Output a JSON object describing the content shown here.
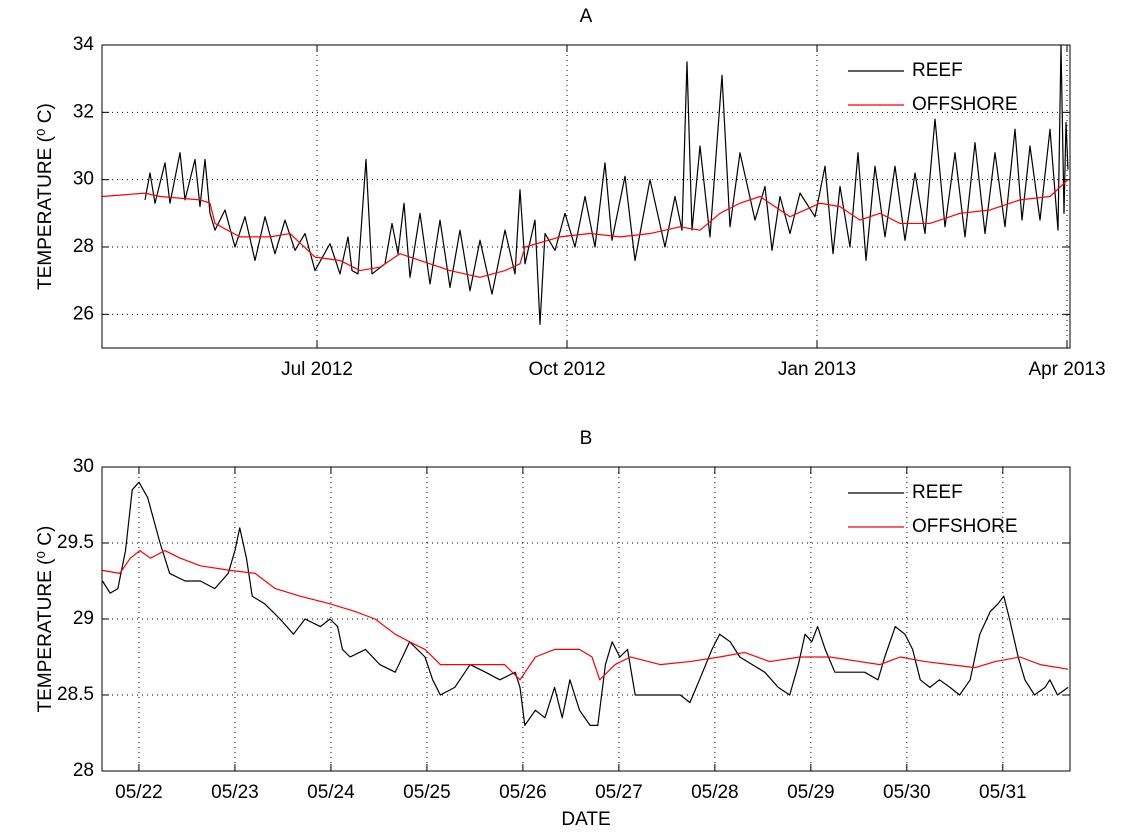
{
  "chart_data": [
    {
      "type": "line",
      "title": "A",
      "ylabel": "TEMPERATURE (⁰ C)",
      "grid": true,
      "legend": "upper right",
      "xlim": [
        2012.285,
        2013.253
      ],
      "ylim": [
        25,
        34
      ],
      "xticks": [
        {
          "value": 2012.5,
          "label": "Jul 2012"
        },
        {
          "value": 2012.75,
          "label": "Oct 2012"
        },
        {
          "value": 2013.0,
          "label": "Jan 2013"
        },
        {
          "value": 2013.25,
          "label": "Apr 2013"
        }
      ],
      "yticks": [
        26,
        28,
        30,
        32,
        34
      ],
      "series": [
        {
          "name": "REEF",
          "color": "#000000",
          "x": [
            2012.328,
            2012.333,
            2012.338,
            2012.348,
            2012.353,
            2012.363,
            2012.368,
            2012.378,
            2012.383,
            2012.388,
            2012.393,
            2012.398,
            2012.408,
            2012.418,
            2012.428,
            2012.438,
            2012.448,
            2012.458,
            2012.468,
            2012.478,
            2012.488,
            2012.498,
            2012.513,
            2012.523,
            2012.531,
            2012.535,
            2012.541,
            2012.549,
            2012.555,
            2012.568,
            2012.575,
            2012.581,
            2012.587,
            2012.593,
            2012.603,
            2012.613,
            2012.623,
            2012.633,
            2012.643,
            2012.653,
            2012.663,
            2012.675,
            2012.688,
            2012.698,
            2012.703,
            2012.708,
            2012.718,
            2012.723,
            2012.728,
            2012.738,
            2012.748,
            2012.758,
            2012.768,
            2012.778,
            2012.788,
            2012.795,
            2012.808,
            2012.818,
            2012.833,
            2012.848,
            2012.858,
            2012.865,
            2012.87,
            2012.875,
            2012.883,
            2012.893,
            2012.905,
            2012.913,
            2012.923,
            2012.938,
            2012.948,
            2012.955,
            2012.963,
            2012.973,
            2012.983,
            2012.998,
            2013.008,
            2013.016,
            2013.023,
            2013.033,
            2013.041,
            2013.049,
            2013.058,
            2013.068,
            2013.078,
            2013.088,
            2013.098,
            2013.108,
            2013.118,
            2013.128,
            2013.138,
            2013.148,
            2013.158,
            2013.168,
            2013.178,
            2013.188,
            2013.198,
            2013.205,
            2013.213,
            2013.223,
            2013.233,
            2013.241,
            2013.244,
            2013.247,
            2013.249,
            2013.251
          ],
          "values": [
            29.4,
            30.2,
            29.3,
            30.5,
            29.3,
            30.8,
            29.4,
            30.6,
            29.2,
            30.6,
            29.0,
            28.5,
            29.1,
            28.0,
            28.9,
            27.6,
            28.9,
            27.8,
            28.8,
            27.9,
            28.4,
            27.3,
            28.1,
            27.2,
            28.3,
            27.3,
            27.2,
            30.6,
            27.2,
            27.5,
            28.7,
            27.8,
            29.3,
            27.1,
            29.0,
            26.9,
            28.8,
            26.8,
            28.5,
            26.7,
            28.2,
            26.6,
            28.5,
            27.2,
            29.7,
            27.5,
            28.8,
            25.7,
            28.4,
            27.9,
            29.0,
            28.0,
            29.5,
            28.0,
            30.5,
            28.2,
            30.1,
            27.6,
            30.0,
            28.0,
            29.5,
            28.5,
            33.5,
            28.5,
            31.0,
            28.3,
            33.1,
            28.6,
            30.8,
            28.8,
            29.8,
            27.9,
            29.5,
            28.4,
            29.6,
            28.9,
            30.4,
            27.8,
            29.8,
            28.0,
            30.8,
            27.6,
            30.4,
            28.3,
            30.4,
            28.2,
            30.2,
            28.4,
            31.8,
            28.6,
            30.8,
            28.3,
            31.1,
            28.4,
            30.8,
            28.6,
            31.5,
            28.8,
            31.0,
            28.8,
            31.5,
            28.5,
            34.0,
            29.0,
            31.7,
            30.3
          ]
        },
        {
          "name": "OFFSHORE",
          "color": "#ff0000",
          "x": [
            2012.285,
            2012.328,
            2012.343,
            2012.383,
            2012.393,
            2012.398,
            2012.423,
            2012.453,
            2012.473,
            2012.498,
            2012.523,
            2012.543,
            2012.563,
            2012.583,
            2012.603,
            2012.633,
            2012.663,
            2012.688,
            2012.703,
            2012.708,
            2012.743,
            2012.773,
            2012.803,
            2012.833,
            2012.863,
            2012.883,
            2012.903,
            2012.923,
            2012.943,
            2012.973,
            2013.003,
            2013.023,
            2013.043,
            2013.063,
            2013.083,
            2013.113,
            2013.143,
            2013.173,
            2013.203,
            2013.233,
            2013.251
          ],
          "values": [
            29.5,
            29.6,
            29.5,
            29.4,
            29.3,
            28.7,
            28.3,
            28.3,
            28.4,
            27.7,
            27.6,
            27.3,
            27.4,
            27.8,
            27.6,
            27.3,
            27.1,
            27.3,
            27.5,
            28.0,
            28.3,
            28.4,
            28.3,
            28.4,
            28.6,
            28.5,
            29.0,
            29.3,
            29.5,
            28.9,
            29.3,
            29.2,
            28.8,
            29.0,
            28.7,
            28.7,
            29.0,
            29.1,
            29.4,
            29.5,
            30.0
          ]
        }
      ]
    },
    {
      "type": "line",
      "title": "B",
      "xlabel": "DATE",
      "ylabel": "TEMPERATURE (⁰ C)",
      "grid": true,
      "legend": "upper right",
      "xlim": [
        21.615,
        31.7
      ],
      "ylim": [
        28,
        30
      ],
      "xticks": [
        {
          "value": 22,
          "label": "05/22"
        },
        {
          "value": 23,
          "label": "05/23"
        },
        {
          "value": 24,
          "label": "05/24"
        },
        {
          "value": 25,
          "label": "05/25"
        },
        {
          "value": 26,
          "label": "05/26"
        },
        {
          "value": 27,
          "label": "05/27"
        },
        {
          "value": 28,
          "label": "05/28"
        },
        {
          "value": 29,
          "label": "05/29"
        },
        {
          "value": 30,
          "label": "05/30"
        },
        {
          "value": 31,
          "label": "05/31"
        }
      ],
      "yticks": [
        28,
        28.5,
        29,
        29.5,
        30
      ],
      "series": [
        {
          "name": "REEF",
          "color": "#000000",
          "x": [
            21.62,
            21.7,
            21.78,
            21.86,
            21.93,
            22.0,
            22.09,
            22.22,
            22.32,
            22.48,
            22.64,
            22.79,
            22.93,
            23.0,
            23.05,
            23.12,
            23.18,
            23.31,
            23.47,
            23.61,
            23.73,
            23.89,
            23.99,
            24.07,
            24.12,
            24.2,
            24.36,
            24.51,
            24.67,
            24.82,
            24.98,
            25.06,
            25.14,
            25.29,
            25.45,
            25.61,
            25.76,
            25.92,
            25.97,
            26.02,
            26.13,
            26.23,
            26.33,
            26.41,
            26.49,
            26.59,
            26.7,
            26.78,
            26.86,
            26.93,
            27.01,
            27.09,
            27.17,
            27.32,
            27.48,
            27.64,
            27.74,
            27.84,
            27.97,
            28.05,
            28.16,
            28.26,
            28.39,
            28.52,
            28.66,
            28.78,
            28.87,
            28.94,
            29.01,
            29.07,
            29.15,
            29.25,
            29.41,
            29.56,
            29.7,
            29.77,
            29.88,
            29.98,
            30.06,
            30.14,
            30.24,
            30.34,
            30.45,
            30.55,
            30.66,
            30.76,
            30.87,
            30.95,
            31.01,
            31.07,
            31.16,
            31.23,
            31.33,
            31.44,
            31.49,
            31.57,
            31.68
          ],
          "values": [
            29.25,
            29.17,
            29.2,
            29.45,
            29.85,
            29.9,
            29.8,
            29.5,
            29.3,
            29.25,
            29.25,
            29.2,
            29.3,
            29.45,
            29.6,
            29.4,
            29.15,
            29.1,
            29.0,
            28.9,
            29.0,
            28.95,
            29.0,
            28.95,
            28.8,
            28.75,
            28.8,
            28.7,
            28.65,
            28.85,
            28.75,
            28.6,
            28.5,
            28.55,
            28.7,
            28.65,
            28.6,
            28.65,
            28.55,
            28.3,
            28.4,
            28.35,
            28.55,
            28.35,
            28.6,
            28.4,
            28.3,
            28.3,
            28.7,
            28.85,
            28.75,
            28.8,
            28.5,
            28.5,
            28.5,
            28.5,
            28.45,
            28.6,
            28.8,
            28.9,
            28.85,
            28.75,
            28.7,
            28.65,
            28.55,
            28.5,
            28.7,
            28.9,
            28.85,
            28.95,
            28.8,
            28.65,
            28.65,
            28.65,
            28.6,
            28.75,
            28.95,
            28.9,
            28.8,
            28.6,
            28.55,
            28.6,
            28.55,
            28.5,
            28.6,
            28.9,
            29.05,
            29.1,
            29.15,
            29.0,
            28.75,
            28.6,
            28.5,
            28.55,
            28.6,
            28.5,
            28.55
          ]
        },
        {
          "name": "OFFSHORE",
          "color": "#ff0000",
          "x": [
            21.62,
            21.8,
            21.91,
            22.01,
            22.12,
            22.27,
            22.43,
            22.64,
            22.95,
            23.21,
            23.42,
            23.68,
            23.99,
            24.25,
            24.46,
            24.67,
            24.82,
            24.98,
            25.14,
            25.4,
            25.66,
            25.81,
            25.97,
            26.13,
            26.33,
            26.59,
            26.72,
            26.8,
            26.96,
            27.12,
            27.43,
            27.74,
            28.05,
            28.31,
            28.57,
            28.89,
            29.2,
            29.51,
            29.72,
            29.93,
            30.19,
            30.45,
            30.71,
            30.92,
            31.18,
            31.39,
            31.68
          ],
          "values": [
            29.32,
            29.3,
            29.4,
            29.45,
            29.4,
            29.45,
            29.4,
            29.35,
            29.32,
            29.3,
            29.2,
            29.15,
            29.1,
            29.05,
            29.0,
            28.9,
            28.85,
            28.8,
            28.7,
            28.7,
            28.7,
            28.7,
            28.6,
            28.75,
            28.8,
            28.8,
            28.75,
            28.6,
            28.7,
            28.75,
            28.7,
            28.72,
            28.75,
            28.78,
            28.72,
            28.75,
            28.75,
            28.72,
            28.7,
            28.75,
            28.72,
            28.7,
            28.68,
            28.72,
            28.75,
            28.7,
            28.67
          ]
        }
      ]
    }
  ]
}
